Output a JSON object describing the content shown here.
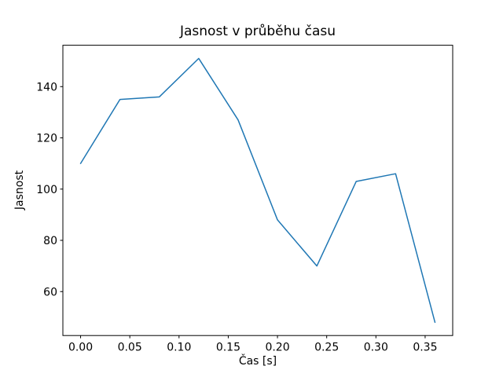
{
  "figure": {
    "background": "#ffffff",
    "spine_color": "#000000",
    "text_color": "#000000"
  },
  "chart_data": {
    "type": "line",
    "title": "Jasnost v průběhu času",
    "xlabel": "Čas [s]",
    "ylabel": "Jasnost",
    "x": [
      0.0,
      0.04,
      0.08,
      0.12,
      0.16,
      0.2,
      0.24,
      0.28,
      0.32,
      0.36
    ],
    "values": [
      110,
      135,
      136,
      151,
      127,
      88,
      70,
      103,
      106,
      48
    ],
    "series_name": "Jasnost",
    "line_color": "#1f77b4",
    "line_width": 1.5,
    "marker": "none",
    "grid": false,
    "legend": "none",
    "xlim": [
      -0.018,
      0.378
    ],
    "ylim": [
      42.85,
      156.15
    ],
    "xticks": [
      0.0,
      0.05,
      0.1,
      0.15,
      0.2,
      0.25,
      0.3,
      0.35
    ],
    "xtick_labels": [
      "0.00",
      "0.05",
      "0.10",
      "0.15",
      "0.20",
      "0.25",
      "0.30",
      "0.35"
    ],
    "yticks": [
      60,
      80,
      100,
      120,
      140
    ],
    "ytick_labels": [
      "60",
      "80",
      "100",
      "120",
      "140"
    ]
  }
}
